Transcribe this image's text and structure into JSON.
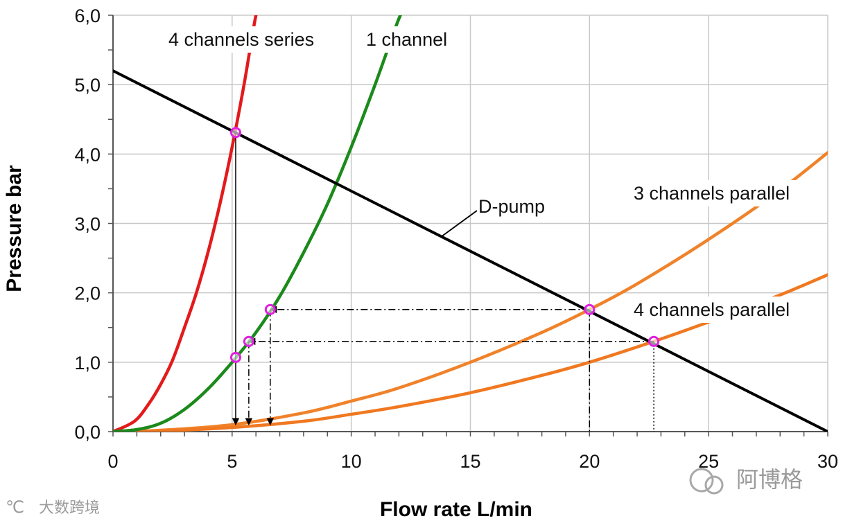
{
  "chart_data": {
    "type": "line",
    "xlabel": "Flow rate  L/min",
    "ylabel": "Pressure  bar",
    "xlim": [
      0,
      30
    ],
    "ylim": [
      0,
      6
    ],
    "x_ticks": [
      "0",
      "5",
      "10",
      "15",
      "20",
      "25",
      "30"
    ],
    "y_ticks": [
      "0,0",
      "1,0",
      "2,0",
      "3,0",
      "4,0",
      "5,0",
      "6,0"
    ],
    "grid": true,
    "series": [
      {
        "name": "4 channels series",
        "color": "#e31a1c",
        "points": [
          [
            0,
            0
          ],
          [
            0.9,
            0.15
          ],
          [
            1.5,
            0.4
          ],
          [
            2,
            0.68
          ],
          [
            2.5,
            1.03
          ],
          [
            3,
            1.5
          ],
          [
            3.5,
            2.0
          ],
          [
            4,
            2.6
          ],
          [
            4.5,
            3.3
          ],
          [
            5,
            4.1
          ],
          [
            5.5,
            5.0
          ],
          [
            6,
            6.0
          ],
          [
            6.2,
            6.1
          ]
        ]
      },
      {
        "name": "1 channel",
        "color": "#1b8a1b",
        "points": [
          [
            0,
            0
          ],
          [
            1,
            0.03
          ],
          [
            2,
            0.12
          ],
          [
            3,
            0.32
          ],
          [
            4,
            0.62
          ],
          [
            5,
            1.0
          ],
          [
            6,
            1.43
          ],
          [
            7,
            1.95
          ],
          [
            8,
            2.58
          ],
          [
            9,
            3.28
          ],
          [
            10,
            4.1
          ],
          [
            11,
            5.0
          ],
          [
            12,
            5.95
          ],
          [
            12.3,
            6.1
          ]
        ]
      },
      {
        "name": "3 channels parallel",
        "color": "#f0822a",
        "points": [
          [
            0,
            0
          ],
          [
            2,
            0.02
          ],
          [
            5,
            0.1
          ],
          [
            8,
            0.27
          ],
          [
            10,
            0.44
          ],
          [
            12,
            0.63
          ],
          [
            15,
            1.0
          ],
          [
            18,
            1.43
          ],
          [
            20,
            1.76
          ],
          [
            22,
            2.13
          ],
          [
            25,
            2.77
          ],
          [
            28,
            3.48
          ],
          [
            30,
            4.02
          ]
        ]
      },
      {
        "name": "4 channels parallel",
        "color": "#f07820",
        "points": [
          [
            0,
            0
          ],
          [
            2,
            0.01
          ],
          [
            5,
            0.06
          ],
          [
            8,
            0.15
          ],
          [
            10,
            0.25
          ],
          [
            12,
            0.36
          ],
          [
            15,
            0.56
          ],
          [
            18,
            0.81
          ],
          [
            20,
            1.0
          ],
          [
            22.7,
            1.3
          ],
          [
            25,
            1.58
          ],
          [
            28,
            1.97
          ],
          [
            30,
            2.26
          ]
        ]
      },
      {
        "name": "D-pump",
        "color": "#000000",
        "points": [
          [
            0,
            5.2
          ],
          [
            30,
            0
          ]
        ]
      }
    ],
    "operating_points": [
      [
        5.15,
        4.31
      ],
      [
        5.15,
        1.07
      ],
      [
        5.7,
        1.3
      ],
      [
        6.6,
        1.76
      ],
      [
        20,
        1.76
      ],
      [
        22.7,
        1.3
      ]
    ],
    "projection_lines": [
      {
        "style": "solid",
        "from": [
          5.15,
          4.31
        ],
        "to": [
          5.15,
          0.1
        ]
      },
      {
        "style": "dashdot",
        "from": [
          20,
          1.76
        ],
        "to": [
          6.6,
          1.76
        ]
      },
      {
        "style": "dashdot",
        "from": [
          6.6,
          1.76
        ],
        "to": [
          6.6,
          0.1
        ]
      },
      {
        "style": "dashdot",
        "from": [
          22.7,
          1.3
        ],
        "to": [
          5.7,
          1.3
        ]
      },
      {
        "style": "dashdot",
        "from": [
          5.7,
          1.3
        ],
        "to": [
          5.7,
          0.1
        ]
      },
      {
        "style": "dashdot",
        "from": [
          20,
          1.76
        ],
        "to": [
          20,
          0
        ]
      },
      {
        "style": "dotted",
        "from": [
          22.7,
          1.3
        ],
        "to": [
          22.7,
          0
        ]
      }
    ],
    "annotations": [
      {
        "text": "4 channels series"
      },
      {
        "text": "1 channel"
      },
      {
        "text": "D-pump"
      },
      {
        "text": "3 channels parallel"
      },
      {
        "text": "4 channels parallel"
      }
    ],
    "marker_color": "#e020e0"
  },
  "watermarks": {
    "left": "大数跨境",
    "right": "阿博格"
  }
}
